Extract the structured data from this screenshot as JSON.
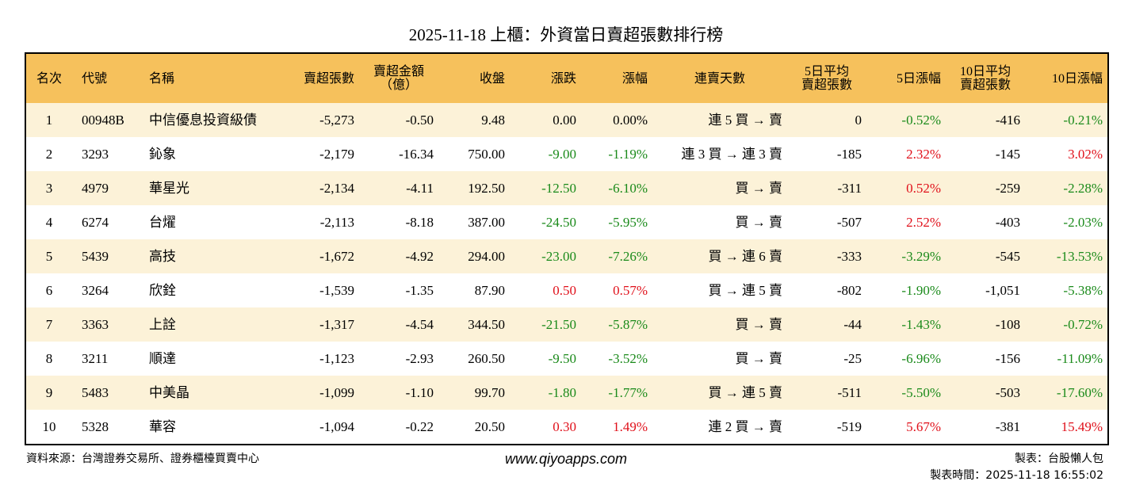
{
  "header": {
    "title": "2025-11-18 上櫃：外資當日賣超張數排行榜"
  },
  "table": {
    "columns": [
      "名次",
      "代號",
      "名稱",
      "賣超張數",
      "賣超金額\n（億）",
      "收盤",
      "漲跌",
      "漲幅",
      "連賣天數",
      "5日平均\n賣超張數",
      "5日漲幅",
      "10日平均\n賣超張數",
      "10日漲幅"
    ],
    "rows": [
      [
        "1",
        "00948B",
        "中信優息投資級債",
        "-5,273",
        "-0.50",
        "9.48",
        "0.00",
        "0.00%",
        "連 5 買 → 賣",
        "0",
        "-0.52%",
        "-416",
        "-0.21%"
      ],
      [
        "2",
        "3293",
        "鈊象",
        "-2,179",
        "-16.34",
        "750.00",
        "-9.00",
        "-1.19%",
        "連 3 買 → 連 3 賣",
        "-185",
        "2.32%",
        "-145",
        "3.02%"
      ],
      [
        "3",
        "4979",
        "華星光",
        "-2,134",
        "-4.11",
        "192.50",
        "-12.50",
        "-6.10%",
        "買 → 賣",
        "-311",
        "0.52%",
        "-259",
        "-2.28%"
      ],
      [
        "4",
        "6274",
        "台燿",
        "-2,113",
        "-8.18",
        "387.00",
        "-24.50",
        "-5.95%",
        "買 → 賣",
        "-507",
        "2.52%",
        "-403",
        "-2.03%"
      ],
      [
        "5",
        "5439",
        "高技",
        "-1,672",
        "-4.92",
        "294.00",
        "-23.00",
        "-7.26%",
        "買 → 連 6 賣",
        "-333",
        "-3.29%",
        "-545",
        "-13.53%"
      ],
      [
        "6",
        "3264",
        "欣銓",
        "-1,539",
        "-1.35",
        "87.90",
        "0.50",
        "0.57%",
        "買 → 連 5 賣",
        "-802",
        "-1.90%",
        "-1,051",
        "-5.38%"
      ],
      [
        "7",
        "3363",
        "上詮",
        "-1,317",
        "-4.54",
        "344.50",
        "-21.50",
        "-5.87%",
        "買 → 賣",
        "-44",
        "-1.43%",
        "-108",
        "-0.72%"
      ],
      [
        "8",
        "3211",
        "順達",
        "-1,123",
        "-2.93",
        "260.50",
        "-9.50",
        "-3.52%",
        "買 → 賣",
        "-25",
        "-6.96%",
        "-156",
        "-11.09%"
      ],
      [
        "9",
        "5483",
        "中美晶",
        "-1,099",
        "-1.10",
        "99.70",
        "-1.80",
        "-1.77%",
        "買 → 連 5 賣",
        "-511",
        "-5.50%",
        "-503",
        "-17.60%"
      ],
      [
        "10",
        "5328",
        "華容",
        "-1,094",
        "-0.22",
        "20.50",
        "0.30",
        "1.49%",
        "連 2 買 → 賣",
        "-519",
        "5.67%",
        "-381",
        "15.49%"
      ]
    ]
  },
  "footer": {
    "source": "資料來源：台灣證券交易所、證券櫃檯買賣中心",
    "website": "www.qiyoapps.com",
    "author": "製表：台股懶人包",
    "timestamp": "製表時間：2025-11-18 16:55:02"
  }
}
